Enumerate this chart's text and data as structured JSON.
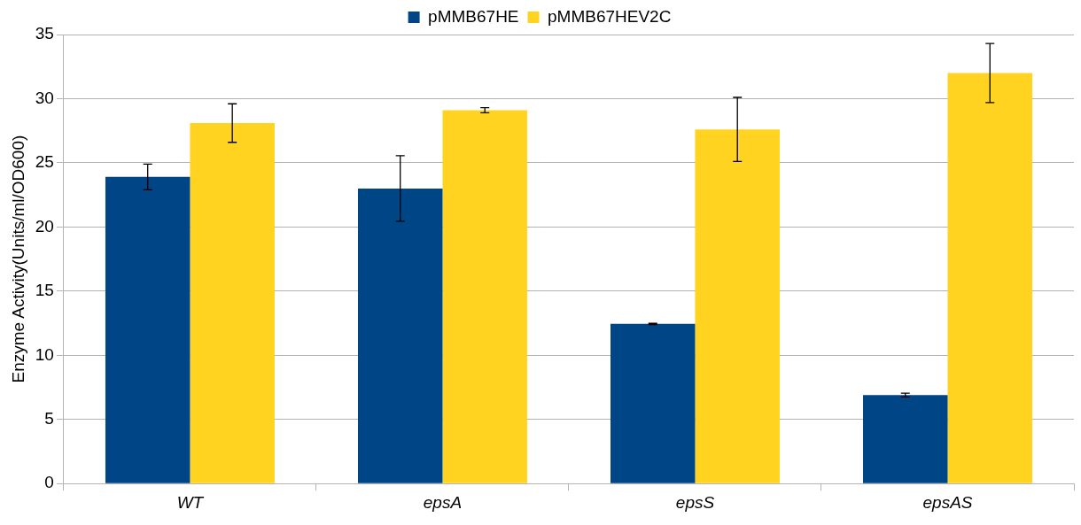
{
  "chart_data": {
    "type": "bar",
    "ylabel": "Enzyme Activity(Units/ml/OD600)",
    "categories": [
      "WT",
      "epsA",
      "epsS",
      "epsAS"
    ],
    "series": [
      {
        "name": "pMMB67HE",
        "color": "#004586",
        "values": [
          23.9,
          23.0,
          12.45,
          6.9
        ],
        "errors": [
          1.0,
          2.55,
          0.05,
          0.15
        ]
      },
      {
        "name": "pMMB67HEV2C",
        "color": "#ffd320",
        "values": [
          28.1,
          29.1,
          27.6,
          32.0
        ],
        "errors": [
          1.5,
          0.2,
          2.5,
          2.3
        ]
      }
    ],
    "ylim": [
      0,
      35
    ],
    "yticks": [
      0,
      5,
      10,
      15,
      20,
      25,
      30,
      35
    ],
    "grid": "y",
    "legend": "top"
  }
}
